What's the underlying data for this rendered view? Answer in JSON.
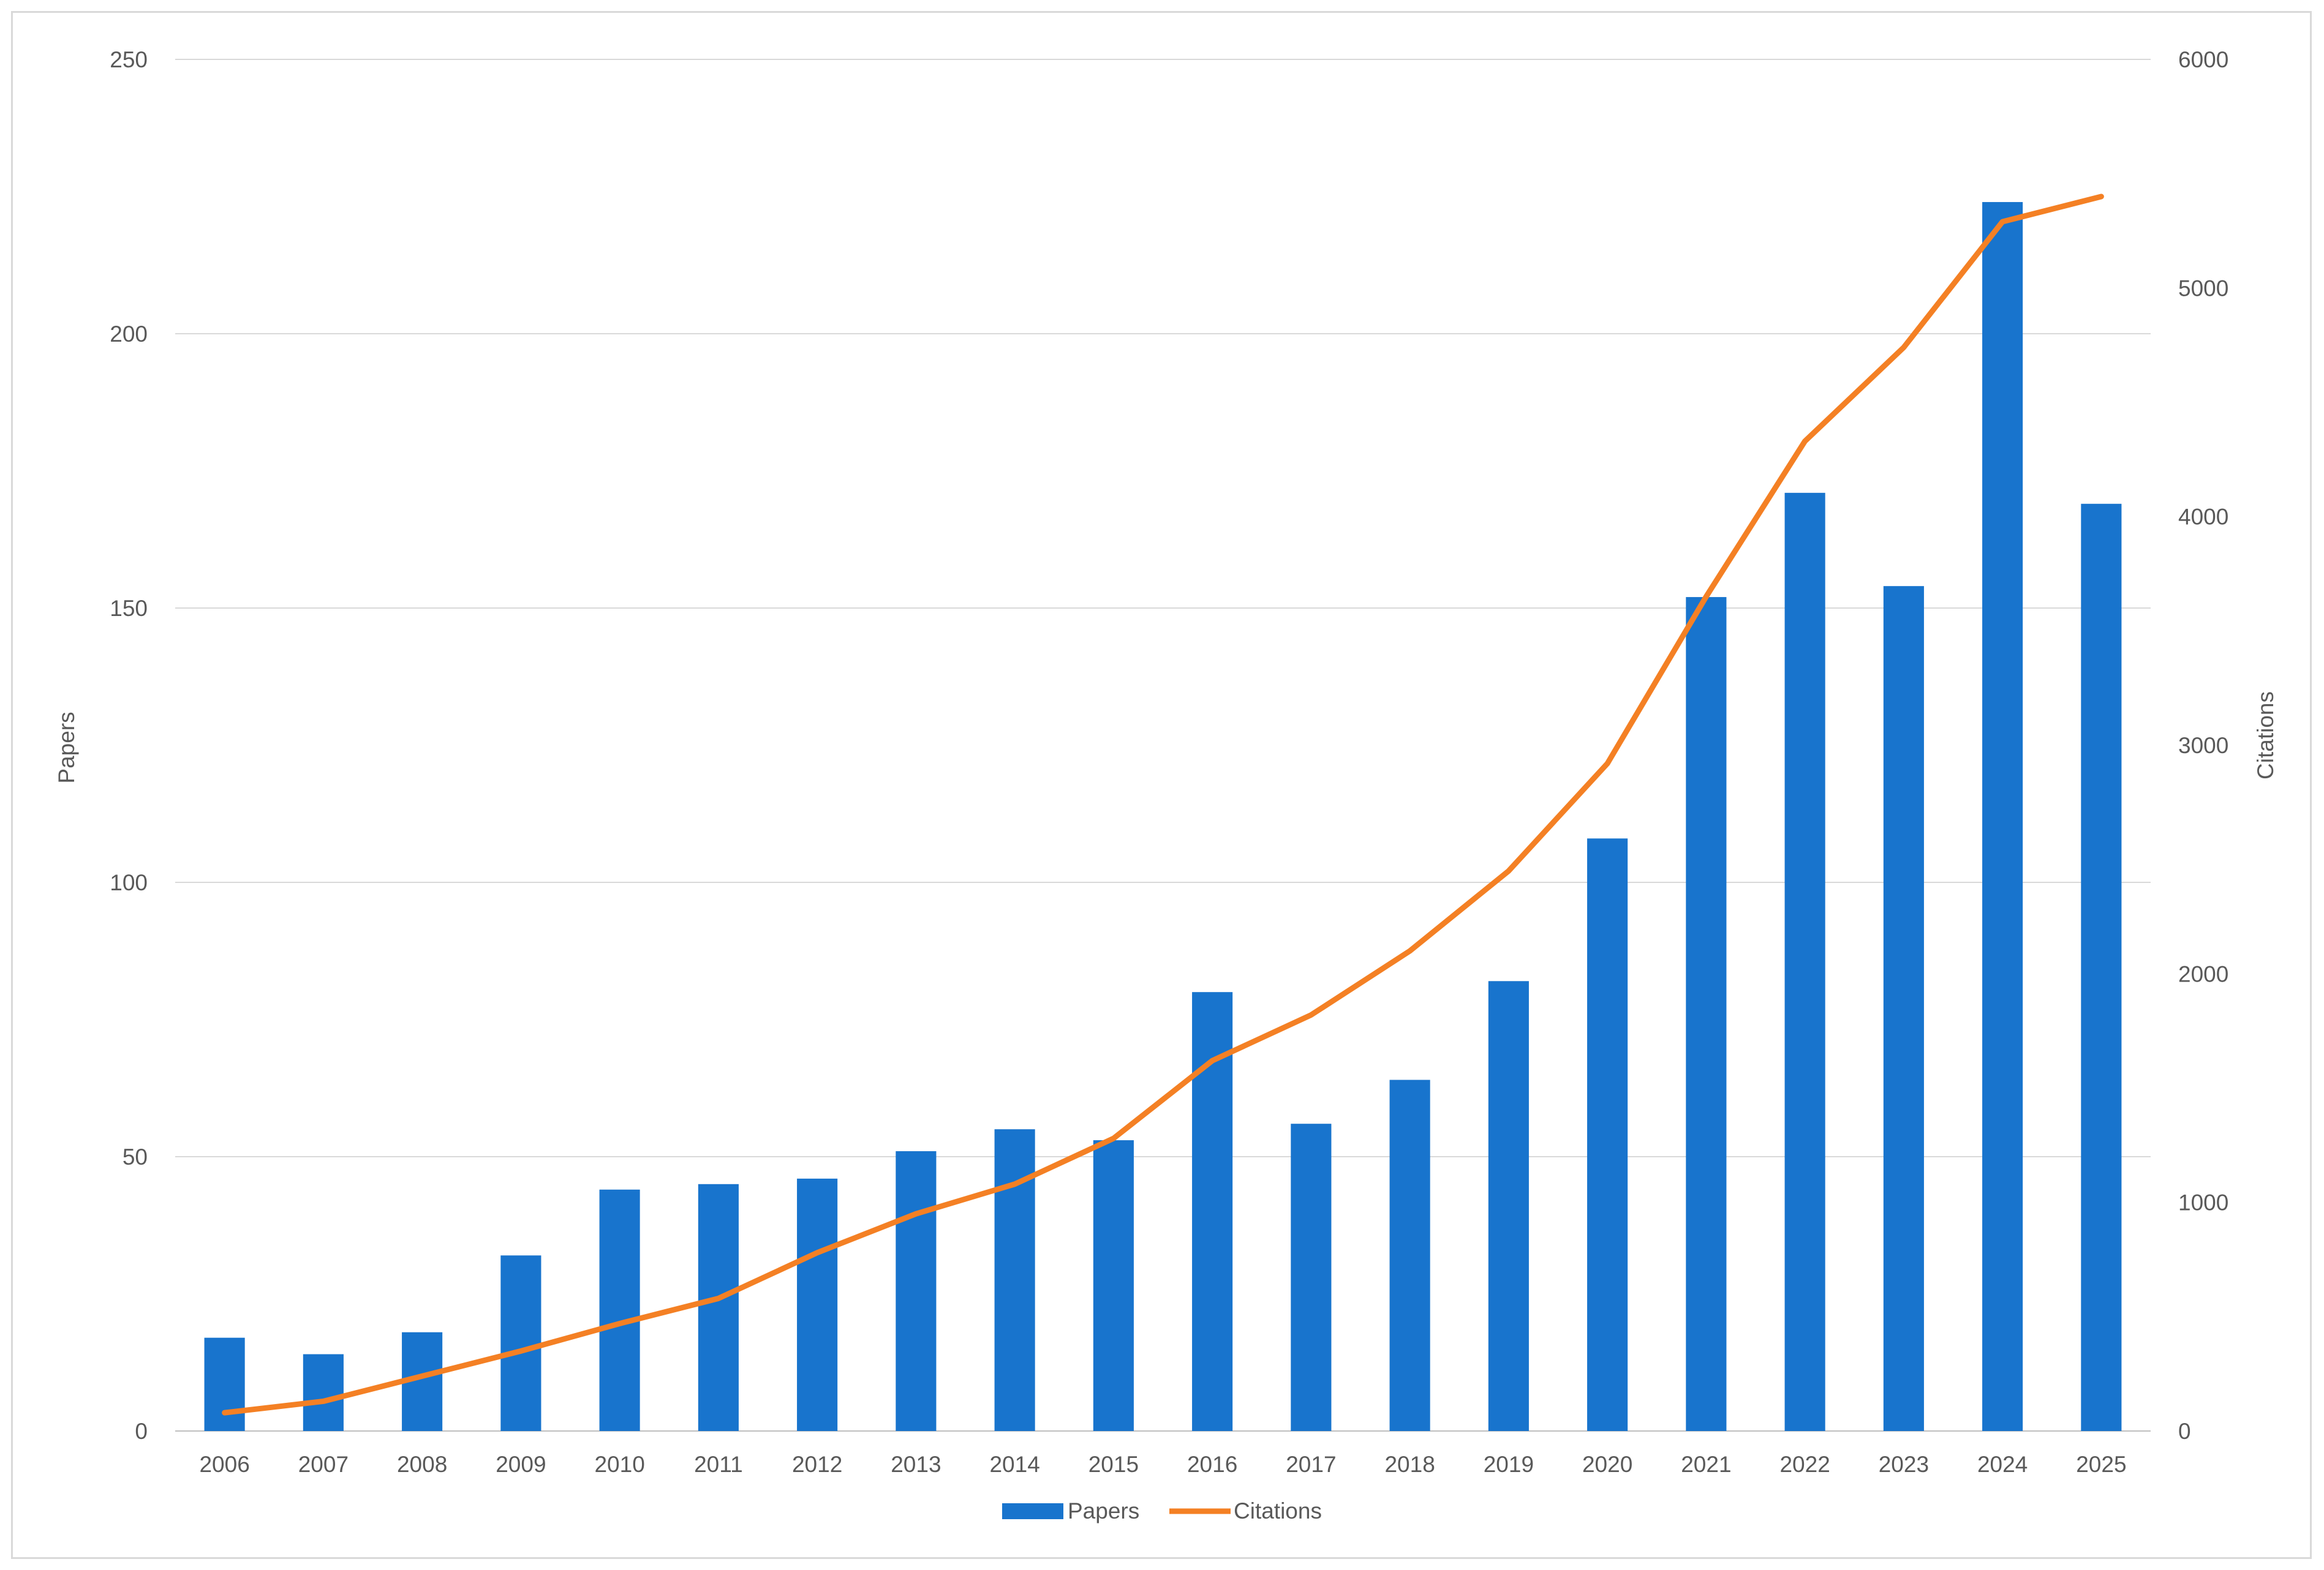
{
  "chart_data": {
    "type": "bar",
    "categories": [
      "2006",
      "2007",
      "2008",
      "2009",
      "2010",
      "2011",
      "2012",
      "2013",
      "2014",
      "2015",
      "2016",
      "2017",
      "2018",
      "2019",
      "2020",
      "2021",
      "2022",
      "2023",
      "2024",
      "2025"
    ],
    "series": [
      {
        "name": "Papers",
        "type": "bar",
        "axis": "left",
        "color": "#1874CD",
        "values": [
          17,
          14,
          18,
          32,
          44,
          45,
          46,
          51,
          55,
          53,
          80,
          56,
          64,
          82,
          108,
          152,
          171,
          154,
          224,
          169
        ]
      },
      {
        "name": "Citations",
        "type": "line",
        "axis": "right",
        "color": "#F48024",
        "values": [
          80,
          130,
          240,
          350,
          470,
          580,
          780,
          950,
          1080,
          1280,
          1620,
          1820,
          2100,
          2450,
          2920,
          3650,
          4330,
          4740,
          5290,
          5400
        ]
      }
    ],
    "ylabel": "Papers",
    "y2label": "Citations",
    "ylim": [
      0,
      250
    ],
    "y2lim": [
      0,
      6000
    ],
    "yticks": [
      "0",
      "50",
      "100",
      "150",
      "200",
      "250"
    ],
    "y2ticks": [
      "0",
      "1000",
      "2000",
      "3000",
      "4000",
      "5000",
      "6000"
    ],
    "grid": true,
    "legend": "bottom"
  }
}
